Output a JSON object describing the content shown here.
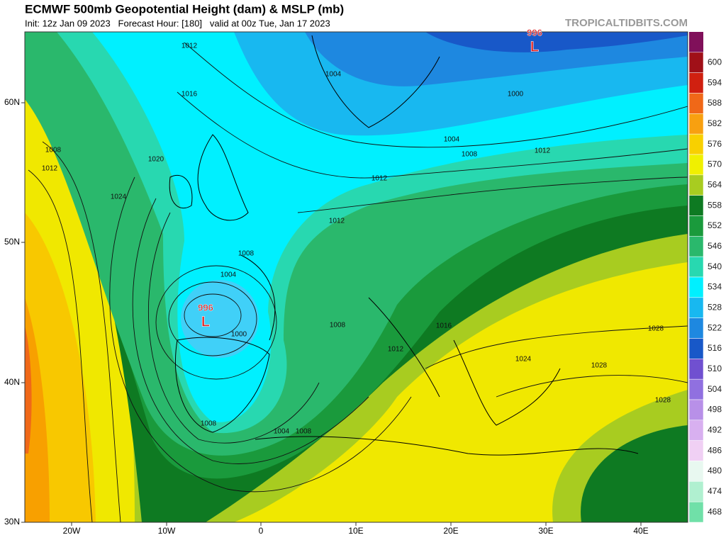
{
  "header": {
    "title": "ECMWF 500mb Geopotential Height (dam) & MSLP (mb)",
    "subtitle": "Init: 12z Jan 09 2023   Forecast Hour: [180]   valid at 00z Tue, Jan 17 2023",
    "watermark": "TROPICALTIDBITS.COM"
  },
  "map": {
    "lat_labels": [
      "60N",
      "50N",
      "40N",
      "30N"
    ],
    "lon_labels": [
      "20W",
      "10W",
      "0",
      "10E",
      "20E",
      "30E",
      "40E"
    ],
    "contour_labels": [
      1012,
      1016,
      1020,
      1024,
      1008,
      1012,
      1004,
      1000,
      1004,
      1008,
      1012,
      1012,
      1012,
      1008,
      1004,
      1000,
      1008,
      1016,
      1012,
      1024,
      1028,
      1028,
      1028,
      1008,
      1004,
      1008
    ],
    "lows": [
      {
        "pressure": 996,
        "symbol": "L"
      },
      {
        "pressure": 996,
        "symbol": "L"
      }
    ]
  },
  "colorbar": {
    "levels": [
      600,
      594,
      588,
      582,
      576,
      570,
      564,
      558,
      552,
      546,
      540,
      534,
      528,
      522,
      516,
      510,
      504,
      498,
      492,
      486,
      480,
      474,
      468
    ],
    "colors": [
      "#a01018",
      "#d02010",
      "#f06818",
      "#f8a010",
      "#f8d000",
      "#f0f000",
      "#a8cc20",
      "#0e7a22",
      "#1a9a3c",
      "#2ab86c",
      "#28d8b0",
      "#00f0ff",
      "#18b8f0",
      "#1e88e0",
      "#1858c8",
      "#7050d0",
      "#9070e0",
      "#b890e8",
      "#d8b0f0",
      "#f0d0f4",
      "#e8f8f0",
      "#b0f0d0",
      "#70e0a8"
    ],
    "top_color": "#80105a"
  }
}
